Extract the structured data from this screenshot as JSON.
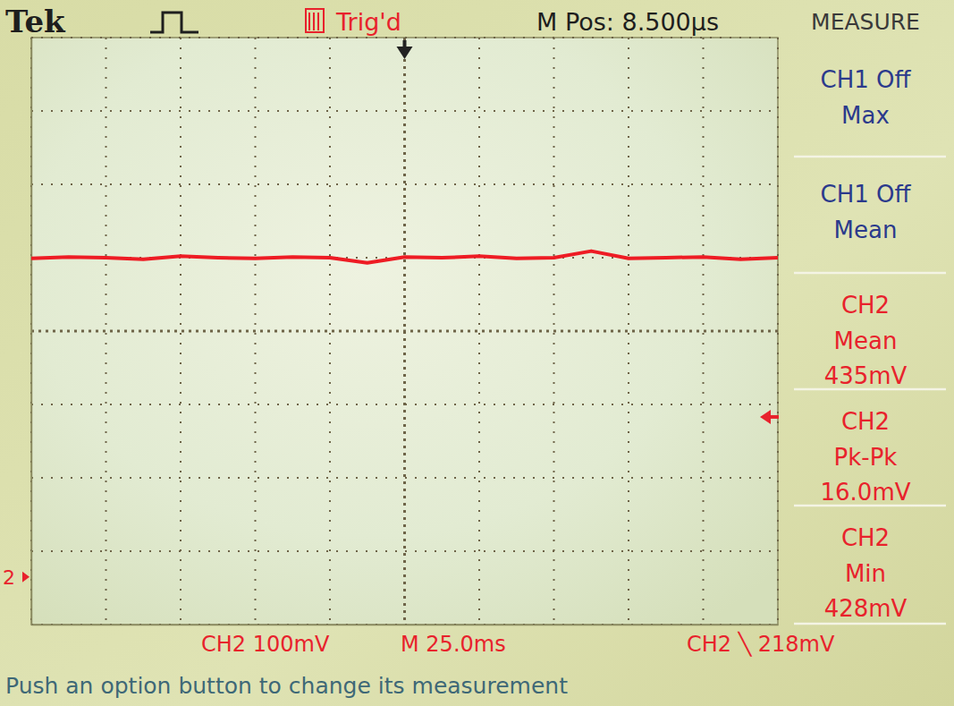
{
  "chart_data": {
    "type": "line",
    "annotations": [
      "Tek",
      "Trig'd",
      "M Pos: 8.500µs",
      "MEASURE",
      "CH2 100mV",
      "M 25.0ms",
      "CH2 ╲ 218mV",
      "Push an option button to change its measurement"
    ],
    "measurements": [
      {
        "source": "CH1 Off",
        "label": "Max",
        "color": "#2b3a8c"
      },
      {
        "source": "CH1 Off",
        "label": "Mean",
        "color": "#2b3a8c"
      },
      {
        "source": "CH2",
        "label": "Mean",
        "reading": "435mV",
        "color": "#e8222c"
      },
      {
        "source": "CH2",
        "label": "Pk-Pk",
        "reading": "16.0mV",
        "color": "#e8222c"
      },
      {
        "source": "CH2",
        "label": "Min",
        "reading": "428mV",
        "color": "#e8222c"
      }
    ],
    "x": [
      -125,
      -112.5,
      -100,
      -87.5,
      -75,
      -62.5,
      -50,
      -37.5,
      -25,
      -12.5,
      0,
      12.5,
      25,
      37.5,
      50,
      62.5,
      75,
      87.5,
      100,
      112.5,
      125
    ],
    "series": [
      {
        "color": "#ee1c24",
        "values": [
          434,
          436,
          435,
          433,
          437,
          435,
          434,
          436,
          435,
          428,
          436,
          435,
          437,
          434,
          435,
          444,
          434,
          435,
          436,
          433,
          435
        ]
      }
    ],
    "xlim": [
      -125,
      125
    ],
    "xticks": [
      -125,
      -100,
      -75,
      -50,
      -25,
      0,
      25,
      50,
      75,
      100,
      125
    ],
    "ylim": [
      -65,
      735
    ],
    "yticks": [
      -65,
      35,
      135,
      235,
      335,
      435,
      535,
      635,
      735
    ],
    "grid": true,
    "tick_labels": false,
    "trigger_level": 218,
    "ground_level": 0,
    "ground_label": "2"
  }
}
